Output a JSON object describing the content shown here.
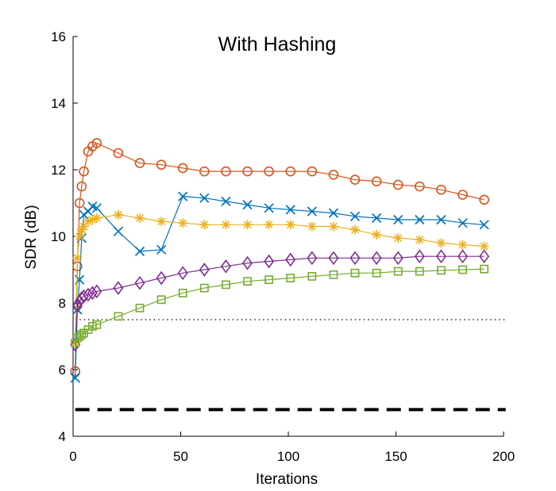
{
  "chart_data": {
    "type": "line",
    "title": "With Hashing",
    "xlabel": "Iterations",
    "ylabel": "SDR (dB)",
    "xlim": [
      0,
      200
    ],
    "ylim": [
      4,
      16
    ],
    "xticks": [
      0,
      50,
      100,
      150,
      200
    ],
    "yticks": [
      4,
      6,
      8,
      10,
      12,
      14,
      16
    ],
    "grid": false,
    "series": [
      {
        "marker": "circle",
        "color": "#d95319",
        "x": [
          1,
          2,
          3,
          4,
          5,
          7,
          9,
          11,
          21,
          31,
          41,
          51,
          61,
          71,
          81,
          91,
          101,
          111,
          121,
          131,
          141,
          151,
          161,
          171,
          181,
          191
        ],
        "values": [
          5.95,
          9.1,
          11.0,
          11.5,
          11.95,
          12.55,
          12.7,
          12.8,
          12.5,
          12.2,
          12.15,
          12.05,
          11.95,
          11.95,
          11.95,
          11.95,
          11.95,
          11.95,
          11.85,
          11.7,
          11.65,
          11.55,
          11.5,
          11.4,
          11.25,
          11.1
        ]
      },
      {
        "marker": "x",
        "color": "#0072bd",
        "x": [
          1,
          2,
          3,
          4,
          5,
          7,
          9,
          11,
          21,
          31,
          41,
          51,
          61,
          71,
          81,
          91,
          101,
          111,
          121,
          131,
          141,
          151,
          161,
          171,
          181,
          191
        ],
        "values": [
          5.75,
          7.8,
          8.7,
          9.95,
          10.65,
          10.75,
          10.9,
          10.85,
          10.15,
          9.55,
          9.6,
          11.2,
          11.15,
          11.05,
          10.95,
          10.85,
          10.8,
          10.75,
          10.7,
          10.6,
          10.55,
          10.5,
          10.5,
          10.5,
          10.4,
          10.35
        ]
      },
      {
        "marker": "star",
        "color": "#edb120",
        "x": [
          1,
          2,
          3,
          4,
          5,
          7,
          9,
          11,
          21,
          31,
          41,
          51,
          61,
          71,
          81,
          91,
          101,
          111,
          121,
          131,
          141,
          151,
          161,
          171,
          181,
          191
        ],
        "values": [
          6.8,
          9.35,
          10.0,
          10.2,
          10.3,
          10.45,
          10.5,
          10.55,
          10.65,
          10.55,
          10.45,
          10.4,
          10.35,
          10.35,
          10.35,
          10.35,
          10.35,
          10.3,
          10.3,
          10.2,
          10.05,
          9.95,
          9.9,
          9.8,
          9.75,
          9.7
        ]
      },
      {
        "marker": "diamond",
        "color": "#7e2f8e",
        "x": [
          1,
          2,
          3,
          4,
          5,
          7,
          9,
          11,
          21,
          31,
          41,
          51,
          61,
          71,
          81,
          91,
          101,
          111,
          121,
          131,
          141,
          151,
          161,
          171,
          181,
          191
        ],
        "values": [
          6.75,
          7.9,
          8.05,
          8.15,
          8.2,
          8.25,
          8.3,
          8.35,
          8.45,
          8.6,
          8.75,
          8.9,
          9.0,
          9.1,
          9.2,
          9.25,
          9.3,
          9.35,
          9.35,
          9.35,
          9.35,
          9.35,
          9.4,
          9.4,
          9.4,
          9.4
        ]
      },
      {
        "marker": "square",
        "color": "#77ac30",
        "x": [
          1,
          2,
          3,
          4,
          5,
          7,
          9,
          11,
          21,
          31,
          41,
          51,
          61,
          71,
          81,
          91,
          101,
          111,
          121,
          131,
          141,
          151,
          161,
          171,
          181,
          191
        ],
        "values": [
          6.8,
          6.95,
          7.0,
          7.05,
          7.1,
          7.2,
          7.3,
          7.35,
          7.6,
          7.85,
          8.1,
          8.3,
          8.45,
          8.55,
          8.65,
          8.7,
          8.75,
          8.8,
          8.85,
          8.9,
          8.9,
          8.95,
          8.95,
          8.98,
          9.0,
          9.02
        ]
      }
    ],
    "reference_lines": [
      {
        "y": 7.5,
        "style": "dotted",
        "color": "#000000"
      },
      {
        "y": 4.8,
        "style": "dashed",
        "color": "#000000"
      }
    ]
  }
}
